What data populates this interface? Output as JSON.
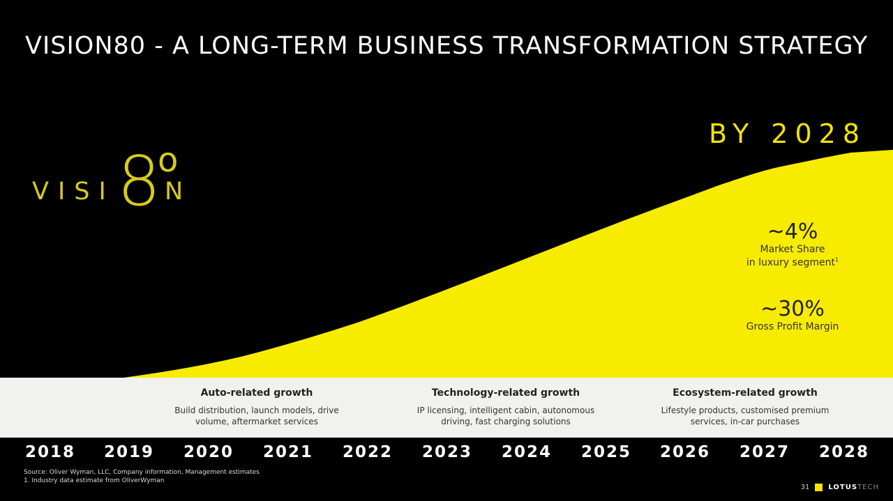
{
  "slide": {
    "title": "VISION80 - A LONG-TERM BUSINESS TRANSFORMATION STRATEGY",
    "target_label": "BY 2028",
    "accent_color": "#f2e400"
  },
  "logo": {
    "prefix": "VISI",
    "suffix": "N",
    "digit": "8",
    "small_zero": "o"
  },
  "metrics": [
    {
      "value": "~4%",
      "label_line1": "Market Share",
      "label_line2": "in luxury segment",
      "footnote": "1"
    },
    {
      "value": "~30%",
      "label_line1": "Gross Profit Margin",
      "label_line2": "",
      "footnote": ""
    }
  ],
  "growth": [
    {
      "title": "Auto-related growth",
      "line1": "Build distribution, launch models, drive",
      "line2": "volume, aftermarket services"
    },
    {
      "title": "Technology-related growth",
      "line1": "IP licensing, intelligent cabin, autonomous",
      "line2": "driving, fast charging solutions"
    },
    {
      "title": "Ecosystem-related growth",
      "line1": "Lifestyle products, customised premium",
      "line2": "services, in-car purchases"
    }
  ],
  "years": [
    "2018",
    "2019",
    "2020",
    "2021",
    "2022",
    "2023",
    "2024",
    "2025",
    "2026",
    "2027",
    "2028"
  ],
  "footer": {
    "source_line1": "Source: Oliver Wyman, LLC, Company information, Management estimates",
    "source_line2": "1. Industry data estimate from OliverWyman",
    "page_number": "31",
    "brand_bold": "LOTUS",
    "brand_thin": "TECH"
  }
}
